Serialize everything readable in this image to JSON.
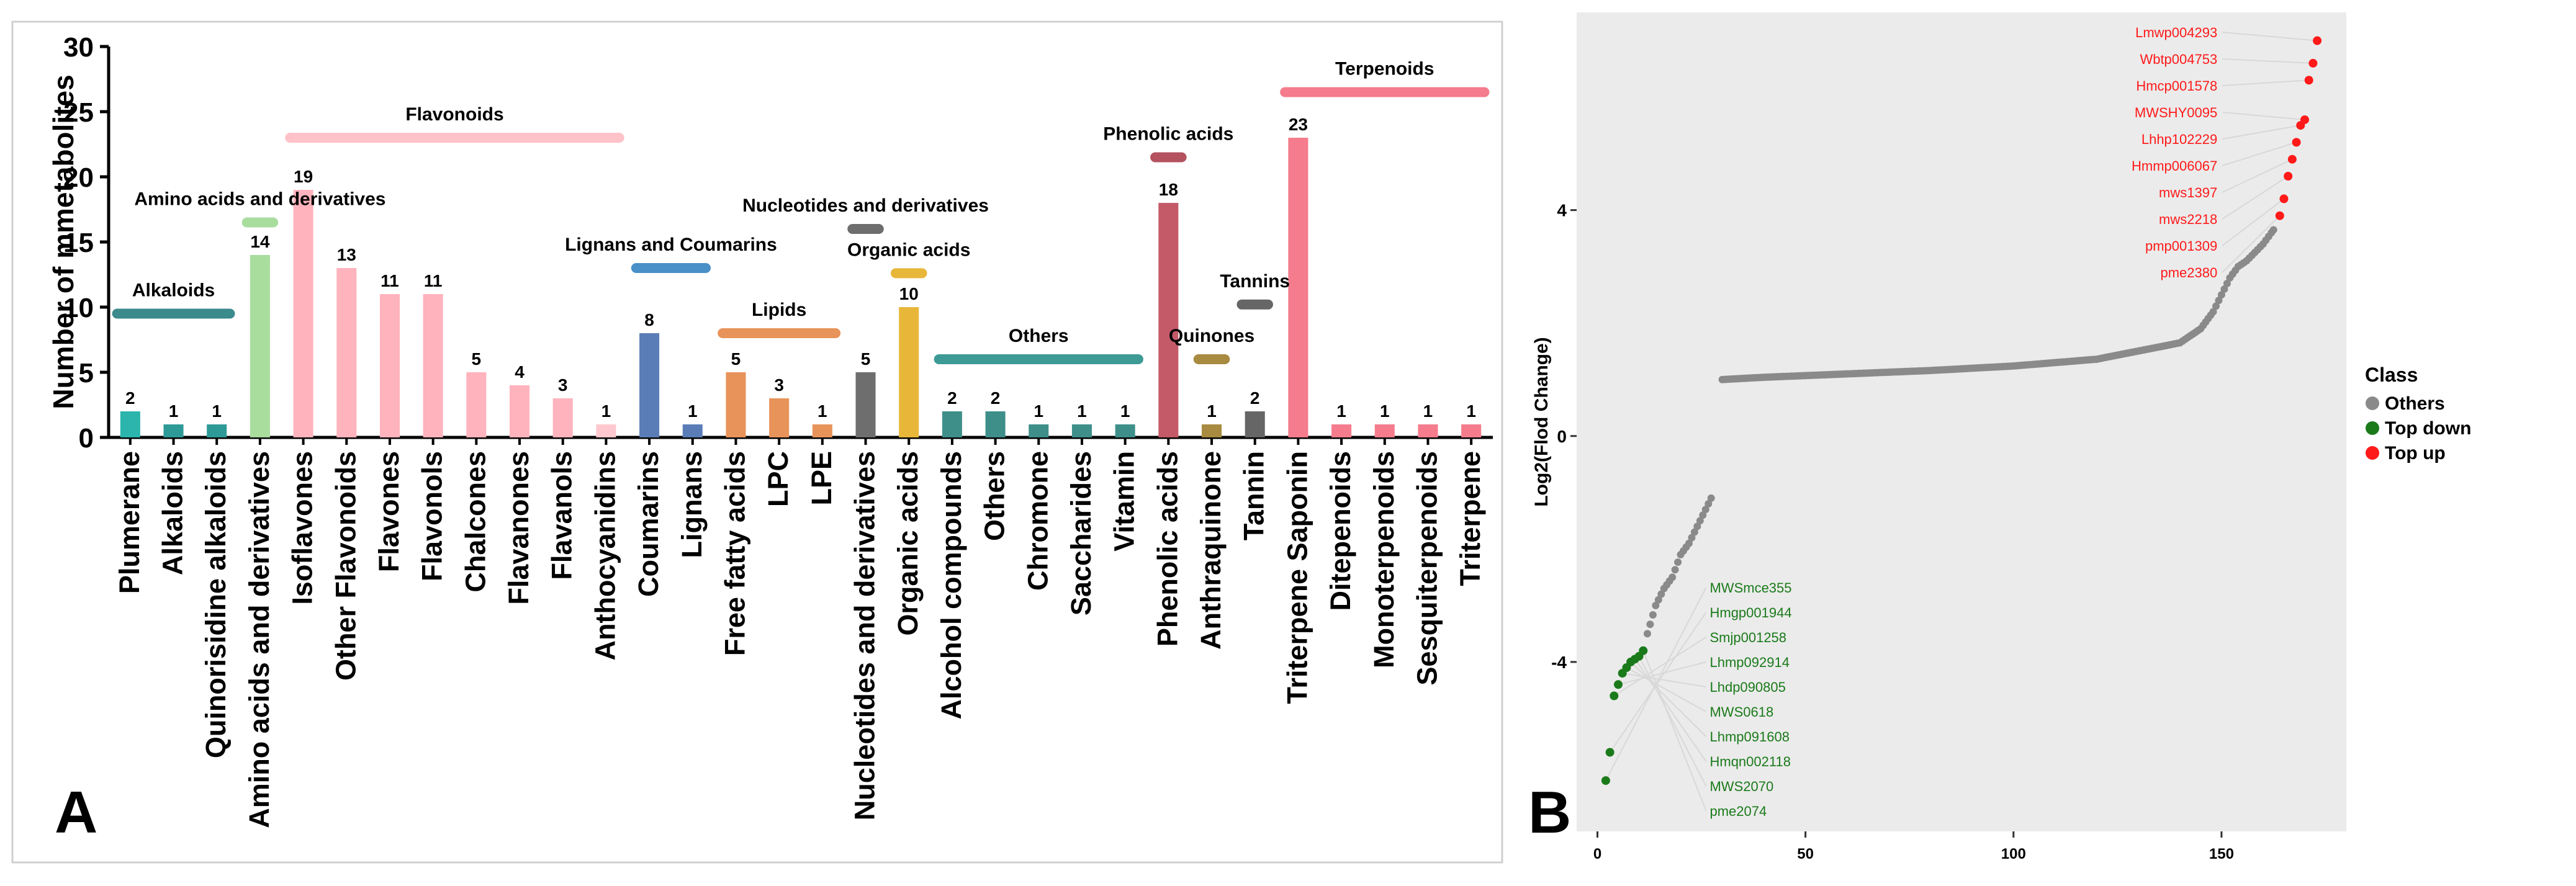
{
  "panel_labels": {
    "a": "A",
    "b": "B"
  },
  "chart_data": [
    {
      "type": "bar",
      "title": "",
      "xlabel": "",
      "ylabel": "Number of mmetabolites",
      "ylim": [
        0,
        30
      ],
      "yticks": [
        0,
        5,
        10,
        15,
        20,
        25,
        30
      ],
      "categories": [
        "Plumerane",
        "Alkaloids",
        "Quinorisidine alkaloids",
        "Amino acids and derivatives",
        "Isoflavones",
        "Other Flavonoids",
        "Flavones",
        "Flavonols",
        "Chalcones",
        "Flavanones",
        "Flavanols",
        "Anthocyanidins",
        "Coumarins",
        "Lignans",
        "Free fatty acids",
        "LPC",
        "LPE",
        "Nucleotides and derivatives",
        "Organic acids",
        "Alcohol compounds",
        "Others",
        "Chromone",
        "Saccharides",
        "Vitamin",
        "Phenolic acids",
        "Anthraquinone",
        "Tannin",
        "Triterpene Saponin",
        "Ditepenoids",
        "Monoterpenoids",
        "Sesquiterpenoids",
        "Triterpene"
      ],
      "values": [
        2,
        1,
        1,
        14,
        19,
        13,
        11,
        11,
        5,
        4,
        3,
        1,
        8,
        1,
        5,
        3,
        1,
        5,
        10,
        2,
        2,
        1,
        1,
        1,
        18,
        1,
        2,
        23,
        1,
        1,
        1,
        1
      ],
      "bar_colors": [
        "#2bb5ac",
        "#2e9a97",
        "#2e9a97",
        "#a8dd9e",
        "#ffb3bd",
        "#ffb3bd",
        "#ffb3bd",
        "#ffb3bd",
        "#ffb3bd",
        "#ffb3bd",
        "#ffb3bd",
        "#ffc8cf",
        "#5a7db8",
        "#5a7db8",
        "#e8935a",
        "#e8935a",
        "#e8935a",
        "#6e6e6e",
        "#e8b73a",
        "#3e8f8a",
        "#3e8f8a",
        "#3e8f8a",
        "#3e8f8a",
        "#3e8f8a",
        "#c45a68",
        "#a88b40",
        "#666666",
        "#f47c8c",
        "#f47c8c",
        "#f47c8c",
        "#f47c8c",
        "#f47c8c"
      ],
      "groups": [
        {
          "label": "Alkaloids",
          "start": 0,
          "end": 2,
          "level": 9.5,
          "color": "#3b8a8c"
        },
        {
          "label": "Amino acids and derivatives",
          "start": 3,
          "end": 3,
          "level": 16.5,
          "color": "#a8dd9e"
        },
        {
          "label": "Flavonoids",
          "start": 4,
          "end": 11,
          "level": 23,
          "color": "#ffc2c8"
        },
        {
          "label": "Lignans and Coumarins",
          "start": 12,
          "end": 13,
          "level": 13,
          "color": "#4a90c8"
        },
        {
          "label": "Lipids",
          "start": 14,
          "end": 16,
          "level": 8,
          "color": "#e8935a"
        },
        {
          "label": "Nucleotides and derivatives",
          "start": 17,
          "end": 17,
          "level": 16,
          "color": "#6e6e6e"
        },
        {
          "label": "Organic acids",
          "start": 18,
          "end": 18,
          "level": 12.6,
          "color": "#e8b73a"
        },
        {
          "label": "Others",
          "start": 19,
          "end": 23,
          "level": 6,
          "color": "#3e9a95"
        },
        {
          "label": "Phenolic acids",
          "start": 24,
          "end": 24,
          "level": 21.5,
          "color": "#b4525f"
        },
        {
          "label": "Quinones",
          "start": 25,
          "end": 25,
          "level": 6,
          "color": "#a88b40"
        },
        {
          "label": "Tannins",
          "start": 26,
          "end": 26,
          "level": 10.2,
          "color": "#666666"
        },
        {
          "label": "Terpenoids",
          "start": 27,
          "end": 31,
          "level": 26.5,
          "color": "#f47c8c"
        }
      ]
    },
    {
      "type": "scatter",
      "title": "",
      "xlabel": "",
      "ylabel": "Log2(Flod Change)",
      "xlim": [
        -5,
        180
      ],
      "ylim": [
        -7,
        7.5
      ],
      "xticks": [
        0,
        50,
        100,
        150
      ],
      "yticks": [
        -4,
        0,
        4
      ],
      "legend": {
        "title": "Class",
        "position": "right",
        "entries": [
          {
            "name": "Others",
            "color": "#8a8a8a"
          },
          {
            "name": "Top down",
            "color": "#1a7a1a"
          },
          {
            "name": "Top up",
            "color": "#ff1a1a"
          }
        ]
      },
      "top_up": {
        "labels": [
          "Lmwp004293",
          "Wbtp004753",
          "Hmcp001578",
          "MWSHY0095",
          "Lhhp102229",
          "Hmmp006067",
          "mws1397",
          "mws2218",
          "pmp001309",
          "pme2380"
        ],
        "x": [
          173,
          172,
          171,
          170,
          169,
          168,
          167,
          166,
          165,
          164
        ],
        "y": [
          7.0,
          6.6,
          6.3,
          5.6,
          5.5,
          5.2,
          4.9,
          4.6,
          4.2,
          3.9
        ]
      },
      "top_down": {
        "labels": [
          "MWSmce355",
          "Hmgp001944",
          "Smjp001258",
          "Lhmp092914",
          "Lhdp090805",
          "MWS0618",
          "Lhmp091608",
          "Hmqn002118",
          "MWS2070",
          "pme2074"
        ],
        "x": [
          2,
          3,
          4,
          5,
          6,
          7,
          8,
          9,
          10,
          11
        ],
        "y": [
          -6.1,
          -5.6,
          -4.6,
          -4.4,
          -4.2,
          -4.1,
          -4.0,
          -3.95,
          -3.9,
          -3.8
        ]
      },
      "others_curve": {
        "x": [
          12,
          14,
          16,
          18,
          20,
          22,
          24,
          26,
          28,
          30,
          40,
          60,
          80,
          100,
          120,
          140,
          145,
          148,
          150,
          152,
          154,
          156,
          158,
          160,
          162,
          163
        ],
        "y": [
          -3.5,
          -3.0,
          -2.7,
          -2.5,
          -2.1,
          -1.9,
          -1.6,
          -1.3,
          -1.0,
          1.0,
          1.04,
          1.1,
          1.16,
          1.24,
          1.36,
          1.65,
          1.9,
          2.2,
          2.5,
          2.8,
          3.0,
          3.1,
          3.25,
          3.4,
          3.6,
          3.7
        ]
      }
    }
  ]
}
